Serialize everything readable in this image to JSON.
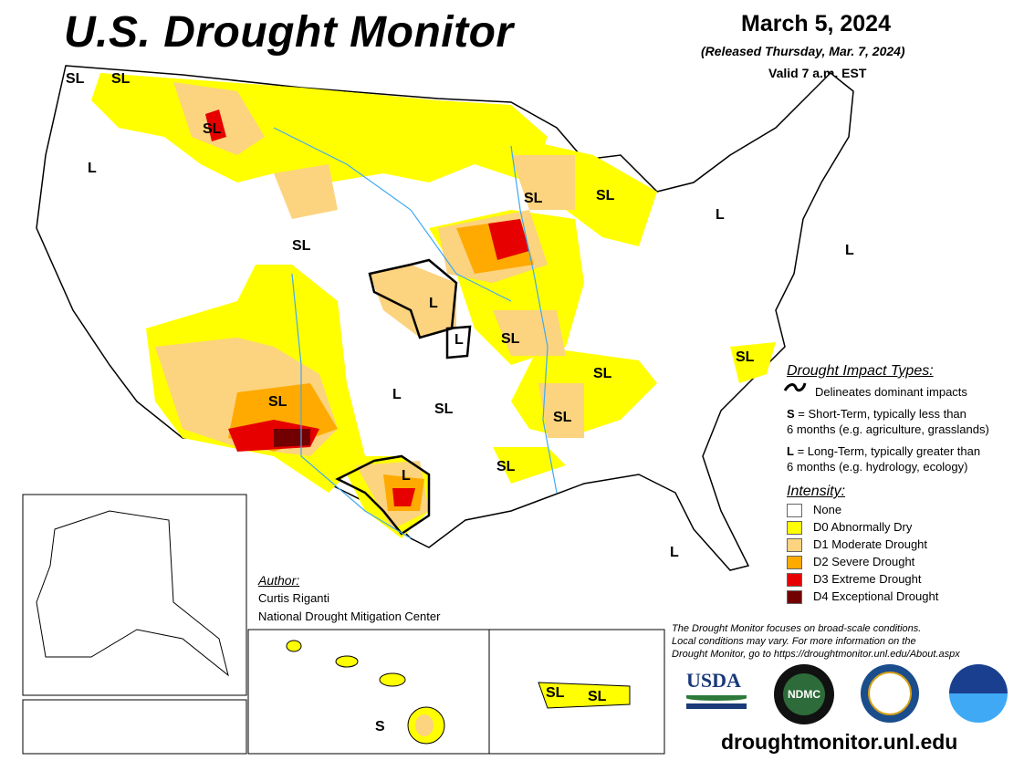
{
  "header": {
    "title": "U.S. Drought Monitor",
    "date": "March 5, 2024",
    "released": "(Released Thursday, Mar. 7, 2024)",
    "valid": "Valid 7 a.m. EST"
  },
  "map_labels": [
    "SL",
    "SL",
    "SL",
    "L",
    "SL",
    "SL",
    "SL",
    "L",
    "L",
    "L",
    "L",
    "SL",
    "SL",
    "SL",
    "L",
    "SL",
    "SL",
    "SL",
    "L",
    "SL",
    "L",
    "S",
    "SL",
    "SL"
  ],
  "legend": {
    "impact_title": "Drought Impact Types:",
    "delineates": "Delineates dominant impacts",
    "short_key": "S",
    "short_text": " = Short-Term, typically less than",
    "short_text2": "6 months (e.g. agriculture, grasslands)",
    "long_key": "L",
    "long_text": " = Long-Term, typically greater than",
    "long_text2": "6 months (e.g. hydrology, ecology)",
    "intensity_title": "Intensity:",
    "levels": [
      {
        "label": "None",
        "color": "#ffffff"
      },
      {
        "label": "D0 Abnormally Dry",
        "color": "#ffff00"
      },
      {
        "label": "D1 Moderate Drought",
        "color": "#fcd37f"
      },
      {
        "label": "D2 Severe Drought",
        "color": "#ffaa00"
      },
      {
        "label": "D3 Extreme Drought",
        "color": "#e60000"
      },
      {
        "label": "D4 Exceptional Drought",
        "color": "#730000"
      }
    ]
  },
  "author": {
    "heading": "Author:",
    "name": "Curtis Riganti",
    "org": "National Drought Mitigation Center"
  },
  "note": {
    "line1": "The Drought Monitor focuses on broad-scale conditions.",
    "line2": "Local conditions may vary. For more information on the",
    "line3": "Drought Monitor, go to https://droughtmonitor.unl.edu/About.aspx"
  },
  "logos": {
    "usda": "USDA",
    "ndmc": "NDMC",
    "commerce": "Department of Commerce",
    "noaa": "NOAA"
  },
  "url": "droughtmonitor.unl.edu",
  "colors": {
    "water": "#3fa9f5",
    "d0": "#ffff00",
    "d1": "#fcd37f",
    "d2": "#ffaa00",
    "d3": "#e60000",
    "d4": "#730000"
  }
}
